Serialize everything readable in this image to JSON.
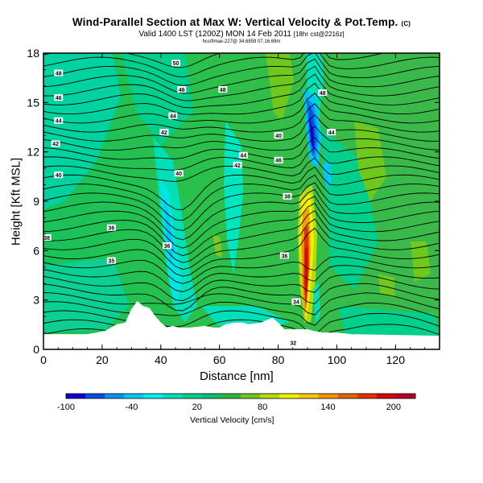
{
  "title": "Wind-Parallel Section at Max W: Vertical Velocity & Pot.Temp.",
  "title_mark": "(C)",
  "subtitle": "Valid 1400 LST (1200Z) MON 14 Feb 2011",
  "subtitle_run": "[18hr cst@2216z]",
  "subtitle_small": "hcs/fimax-227@ 34.6859 07.16.69m",
  "chart_data": {
    "type": "heatmap",
    "xlabel": "Distance [nm]",
    "ylabel": "Height [Kft MSL]",
    "xlim": [
      0,
      135
    ],
    "ylim": [
      0,
      18
    ],
    "xticks": [
      "0",
      "20",
      "40",
      "60",
      "80",
      "100",
      "120"
    ],
    "yticks": [
      "0",
      "3",
      "6",
      "9",
      "12",
      "15",
      "18"
    ],
    "colorbar": {
      "label": "Vertical Velocity [cm/s]",
      "ticks": [
        "-100",
        "-40",
        "20",
        "80",
        "140",
        "200"
      ],
      "range": [
        -100,
        220
      ],
      "colors": [
        "#0a00d2",
        "#0050e6",
        "#0093f0",
        "#00c8f5",
        "#00f0f0",
        "#00e0b8",
        "#00d08c",
        "#0cc070",
        "#2db83c",
        "#6ec81e",
        "#b4dc0a",
        "#f0f000",
        "#f5c800",
        "#f09600",
        "#e66400",
        "#e13200",
        "#d20a0a",
        "#b40028"
      ]
    },
    "contour_labels": [
      {
        "x": 5,
        "y": 16.8,
        "t": "48"
      },
      {
        "x": 5,
        "y": 15.3,
        "t": "46"
      },
      {
        "x": 5,
        "y": 13.9,
        "t": "44"
      },
      {
        "x": 4,
        "y": 12.5,
        "t": "42"
      },
      {
        "x": 5,
        "y": 10.6,
        "t": "40"
      },
      {
        "x": 1,
        "y": 6.8,
        "t": "38"
      },
      {
        "x": 23,
        "y": 7.4,
        "t": "36"
      },
      {
        "x": 23,
        "y": 5.4,
        "t": "35"
      },
      {
        "x": 45,
        "y": 17.4,
        "t": "50"
      },
      {
        "x": 47,
        "y": 15.8,
        "t": "46"
      },
      {
        "x": 44,
        "y": 14.2,
        "t": "44"
      },
      {
        "x": 41,
        "y": 13.2,
        "t": "42"
      },
      {
        "x": 46,
        "y": 10.7,
        "t": "40"
      },
      {
        "x": 42,
        "y": 6.3,
        "t": "36"
      },
      {
        "x": 61,
        "y": 15.8,
        "t": "48"
      },
      {
        "x": 68,
        "y": 11.8,
        "t": "44"
      },
      {
        "x": 66,
        "y": 11.2,
        "t": "42"
      },
      {
        "x": 83,
        "y": 9.3,
        "t": "38"
      },
      {
        "x": 82,
        "y": 5.7,
        "t": "36"
      },
      {
        "x": 86,
        "y": 2.9,
        "t": "34"
      },
      {
        "x": 85,
        "y": 0.4,
        "t": "32"
      },
      {
        "x": 80,
        "y": 13.0,
        "t": "40"
      },
      {
        "x": 80,
        "y": 11.5,
        "t": "46"
      },
      {
        "x": 95,
        "y": 15.6,
        "t": "48"
      },
      {
        "x": 98,
        "y": 13.2,
        "t": "44"
      }
    ],
    "terrain": [
      [
        0,
        0.9
      ],
      [
        15,
        0.9
      ],
      [
        18,
        1.0
      ],
      [
        21,
        1.1
      ],
      [
        25,
        1.5
      ],
      [
        28,
        1.6
      ],
      [
        30,
        2.4
      ],
      [
        32,
        2.9
      ],
      [
        34,
        2.6
      ],
      [
        36,
        2.5
      ],
      [
        38,
        2.0
      ],
      [
        40,
        1.6
      ],
      [
        42,
        1.3
      ],
      [
        44,
        1.4
      ],
      [
        46,
        1.3
      ],
      [
        50,
        1.3
      ],
      [
        55,
        1.4
      ],
      [
        58,
        1.3
      ],
      [
        60,
        1.3
      ],
      [
        62,
        1.5
      ],
      [
        65,
        1.6
      ],
      [
        68,
        1.6
      ],
      [
        70,
        1.5
      ],
      [
        74,
        1.6
      ],
      [
        78,
        1.9
      ],
      [
        80,
        1.6
      ],
      [
        82,
        1.2
      ],
      [
        85,
        1.2
      ],
      [
        88,
        1.2
      ],
      [
        90,
        1.2
      ],
      [
        92,
        1.1
      ],
      [
        95,
        1.0
      ],
      [
        100,
        1.0
      ],
      [
        105,
        0.9
      ],
      [
        135,
        0.8
      ]
    ]
  }
}
